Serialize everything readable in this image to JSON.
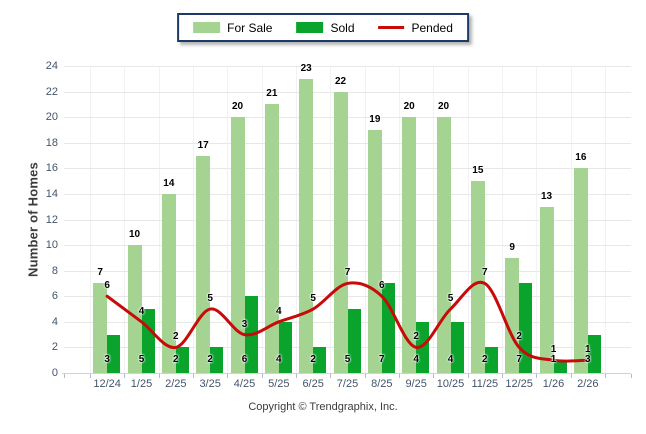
{
  "chart_data": {
    "type": "bar",
    "title": "",
    "categories": [
      "12/24",
      "1/25",
      "2/25",
      "3/25",
      "4/25",
      "5/25",
      "6/25",
      "7/25",
      "8/25",
      "9/25",
      "10/25",
      "11/25",
      "12/25",
      "1/26",
      "2/26"
    ],
    "series": [
      {
        "name": "For Sale",
        "type": "bar",
        "color": "#A5D492",
        "values": [
          7,
          10,
          14,
          17,
          20,
          21,
          23,
          22,
          19,
          20,
          20,
          15,
          9,
          13,
          16
        ]
      },
      {
        "name": "Sold",
        "type": "bar",
        "color": "#0AA42D",
        "values": [
          3,
          5,
          2,
          2,
          6,
          4,
          2,
          5,
          7,
          4,
          4,
          2,
          7,
          1,
          3
        ]
      },
      {
        "name": "Pended",
        "type": "line",
        "color": "#C70A0A",
        "values": [
          6,
          4,
          2,
          5,
          3,
          4,
          5,
          7,
          6,
          2,
          5,
          7,
          2,
          1,
          1
        ]
      }
    ],
    "xlabel": "",
    "ylabel": "Number of Homes",
    "ylim": [
      0,
      24
    ],
    "ytick_step": 2,
    "grid": true,
    "value_labels": true,
    "legend_position": "top-center",
    "axis_text_color": "#44546A",
    "grid_color": "#E8E8E8"
  },
  "footer": {
    "copyright": "Copyright © Trendgraphix, Inc."
  }
}
